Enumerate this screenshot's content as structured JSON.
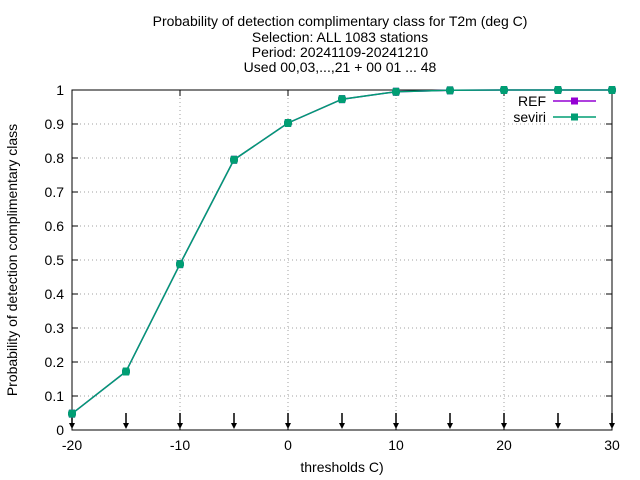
{
  "chart_data": {
    "type": "line",
    "title_lines": [
      "Probability of detection complimentary class  for T2m (deg C)",
      "Selection: ALL    1083 stations",
      "Period: 20241109-20241210",
      "Used 00,03,...,21 + 00 01 ... 48"
    ],
    "xlabel": "thresholds C)",
    "ylabel": "Probability of detection complimentary class",
    "xlim": [
      -20,
      30
    ],
    "ylim": [
      0,
      1
    ],
    "x_ticks": [
      -20,
      -10,
      0,
      10,
      20,
      30
    ],
    "y_ticks": [
      0,
      0.1,
      0.2,
      0.3,
      0.4,
      0.5,
      0.6,
      0.7,
      0.8,
      0.9,
      1
    ],
    "grid": true,
    "legend_position": "top-right",
    "threshold_markers_x": [
      -20,
      -15,
      -10,
      -5,
      0,
      5,
      10,
      15,
      20,
      25,
      30
    ],
    "series": [
      {
        "name": "REF",
        "color": "#9400d3",
        "x": [
          -20,
          -15,
          -10,
          -5,
          0,
          5,
          10,
          15,
          20,
          25,
          30
        ],
        "y": [
          0.048,
          0.172,
          0.488,
          0.795,
          0.903,
          0.973,
          0.995,
          0.999,
          1.0,
          1.0,
          1.0
        ]
      },
      {
        "name": "seviri",
        "color": "#009e73",
        "x": [
          -20,
          -15,
          -10,
          -5,
          0,
          5,
          10,
          15,
          20,
          25,
          30
        ],
        "y": [
          0.048,
          0.172,
          0.488,
          0.795,
          0.903,
          0.973,
          0.995,
          0.999,
          1.0,
          1.0,
          1.0
        ]
      }
    ]
  }
}
